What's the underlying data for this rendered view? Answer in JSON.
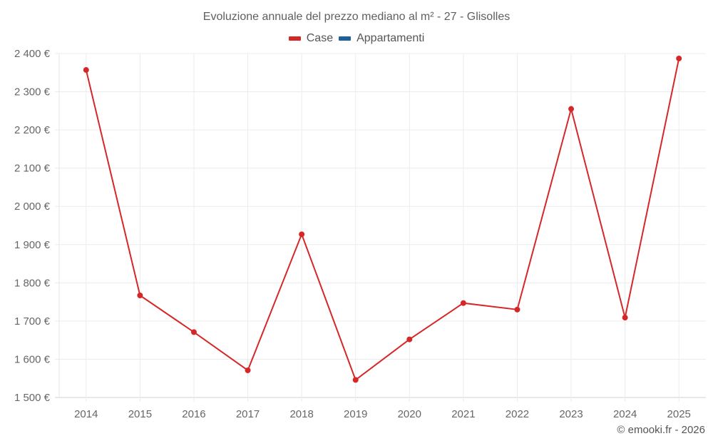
{
  "title": "Evoluzione annuale del prezzo mediano al m² - 27 - Glisolles",
  "legend": [
    {
      "label": "Case",
      "color": "#d62728"
    },
    {
      "label": "Appartamenti",
      "color": "#1f5f9a"
    }
  ],
  "credit": "© emooki.fr - 2026",
  "chart_data": {
    "type": "line",
    "title": "Evoluzione annuale del prezzo mediano al m² - 27 - Glisolles",
    "xlabel": "",
    "ylabel": "",
    "categories": [
      "2014",
      "2015",
      "2016",
      "2017",
      "2018",
      "2019",
      "2020",
      "2021",
      "2022",
      "2023",
      "2024",
      "2025"
    ],
    "series": [
      {
        "name": "Case",
        "color": "#d62728",
        "values": [
          2357,
          1767,
          1671,
          1571,
          1927,
          1546,
          1652,
          1747,
          1730,
          2255,
          1709,
          2387
        ]
      },
      {
        "name": "Appartamenti",
        "color": "#1f5f9a",
        "values": []
      }
    ],
    "ylim": [
      1500,
      2400
    ],
    "yticks": [
      1500,
      1600,
      1700,
      1800,
      1900,
      2000,
      2100,
      2200,
      2300,
      2400
    ],
    "ytick_labels": [
      "1 500 €",
      "1 600 €",
      "1 700 €",
      "1 800 €",
      "1 900 €",
      "2 000 €",
      "2 100 €",
      "2 200 €",
      "2 300 €",
      "2 400 €"
    ],
    "grid": true,
    "legend_position": "top"
  }
}
